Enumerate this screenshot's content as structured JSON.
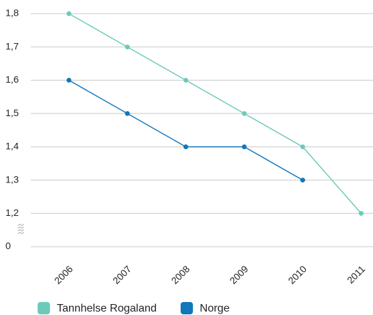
{
  "chart_data": {
    "type": "line",
    "categories": [
      "2006",
      "2007",
      "2008",
      "2009",
      "2010",
      "2011"
    ],
    "series": [
      {
        "name": "Tannhelse Rogaland",
        "color": "#6dcaba",
        "values": [
          1.8,
          1.7,
          1.6,
          1.5,
          1.4,
          1.2
        ]
      },
      {
        "name": "Norge",
        "color": "#1177bb",
        "values": [
          1.6,
          1.5,
          1.4,
          1.4,
          1.3,
          null
        ]
      }
    ],
    "ylim": [
      0,
      1.8
    ],
    "yticks": [
      {
        "value": 0,
        "label": "0"
      },
      {
        "value": 1.2,
        "label": "1,2"
      },
      {
        "value": 1.3,
        "label": "1,3"
      },
      {
        "value": 1.4,
        "label": "1,4"
      },
      {
        "value": 1.5,
        "label": "1,5"
      },
      {
        "value": 1.6,
        "label": "1,6"
      },
      {
        "value": 1.7,
        "label": "1,7"
      },
      {
        "value": 1.8,
        "label": "1,8"
      }
    ],
    "axis_break": true,
    "grid": true,
    "legend": "bottom"
  }
}
